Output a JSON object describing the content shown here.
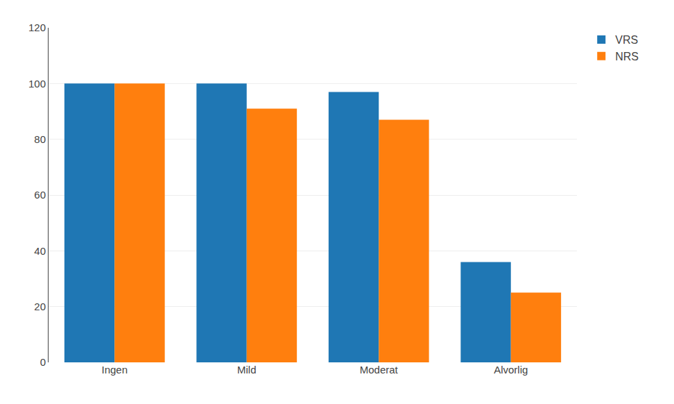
{
  "chart_data": {
    "type": "bar",
    "categories": [
      "Ingen",
      "Mild",
      "Moderat",
      "Alvorlig"
    ],
    "series": [
      {
        "name": "VRS",
        "values": [
          100,
          100,
          97,
          36
        ]
      },
      {
        "name": "NRS",
        "values": [
          100,
          91,
          87,
          25
        ]
      }
    ],
    "ylim": [
      0,
      120
    ],
    "yticks": [
      0,
      20,
      40,
      60,
      80,
      100,
      120
    ],
    "grid": true,
    "legend": "upper right"
  }
}
